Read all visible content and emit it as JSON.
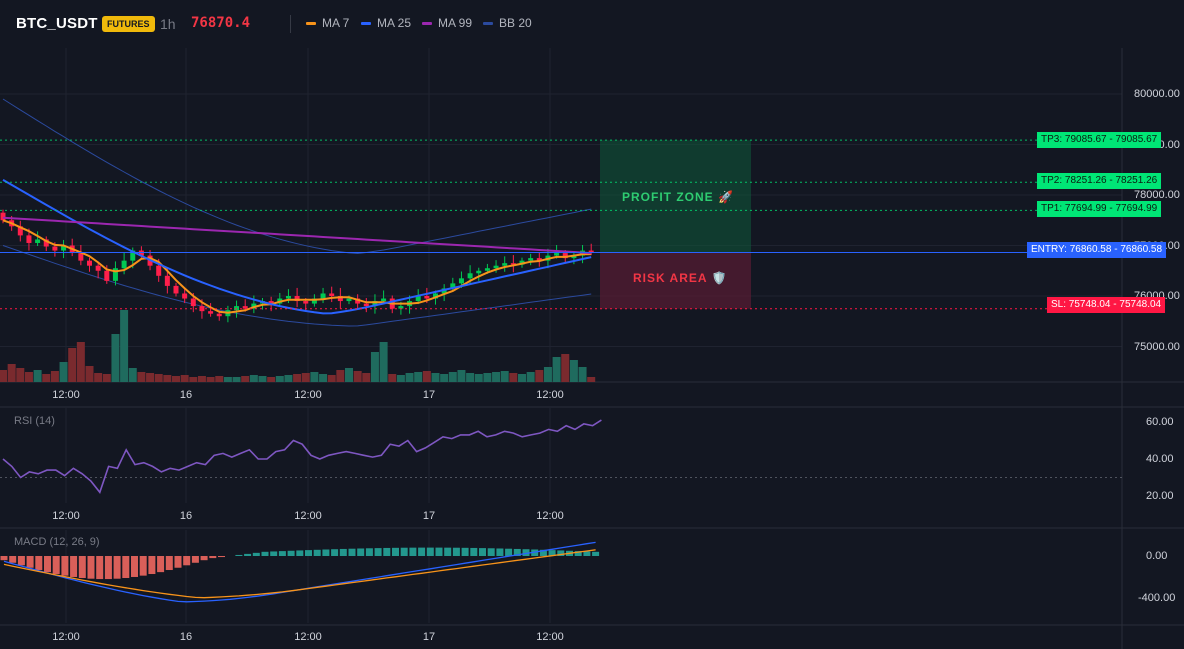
{
  "header": {
    "symbol": "BTC_USDT",
    "badge": "FUTURES",
    "timeframe": "1h",
    "price": "76870.4",
    "legend": [
      {
        "label": "MA 7",
        "color": "#f7931a"
      },
      {
        "label": "MA 25",
        "color": "#2962ff"
      },
      {
        "label": "MA 99",
        "color": "#9c27b0"
      },
      {
        "label": "BB 20",
        "color": "#1e3a8a"
      }
    ]
  },
  "colors": {
    "up": "#26a69a",
    "down": "#ef5350",
    "upBright": "#00e676",
    "downBright": "#ff1744"
  },
  "price_axis": [
    "80000.00",
    "79000.00",
    "78000.00",
    "77000.00",
    "76000.00",
    "75000.00"
  ],
  "levels": {
    "tp3": {
      "tag": "TP3: 79085.67",
      "value": "79085.67"
    },
    "tp2": {
      "tag": "TP2: 78251.26",
      "value": "78251.26"
    },
    "tp1": {
      "tag": "TP1: 77694.99",
      "value": "77694.99"
    },
    "entry": {
      "tag": "ENTRY: 76860.58",
      "value": "76860.58"
    },
    "sl": {
      "tag": "SL: 75748.04",
      "value": "75748.04"
    }
  },
  "zones": {
    "profit": "PROFIT ZONE 🚀",
    "risk": "RISK AREA 🛡️"
  },
  "time_axis": [
    "12:00",
    "16",
    "12:00",
    "17",
    "12:00"
  ],
  "rsi": {
    "label": "RSI (14)",
    "axis": [
      "60.00",
      "40.00",
      "20.00"
    ]
  },
  "macd": {
    "label": "MACD (12, 26, 9)",
    "axis": [
      "0.00",
      "-400.00"
    ]
  }
}
